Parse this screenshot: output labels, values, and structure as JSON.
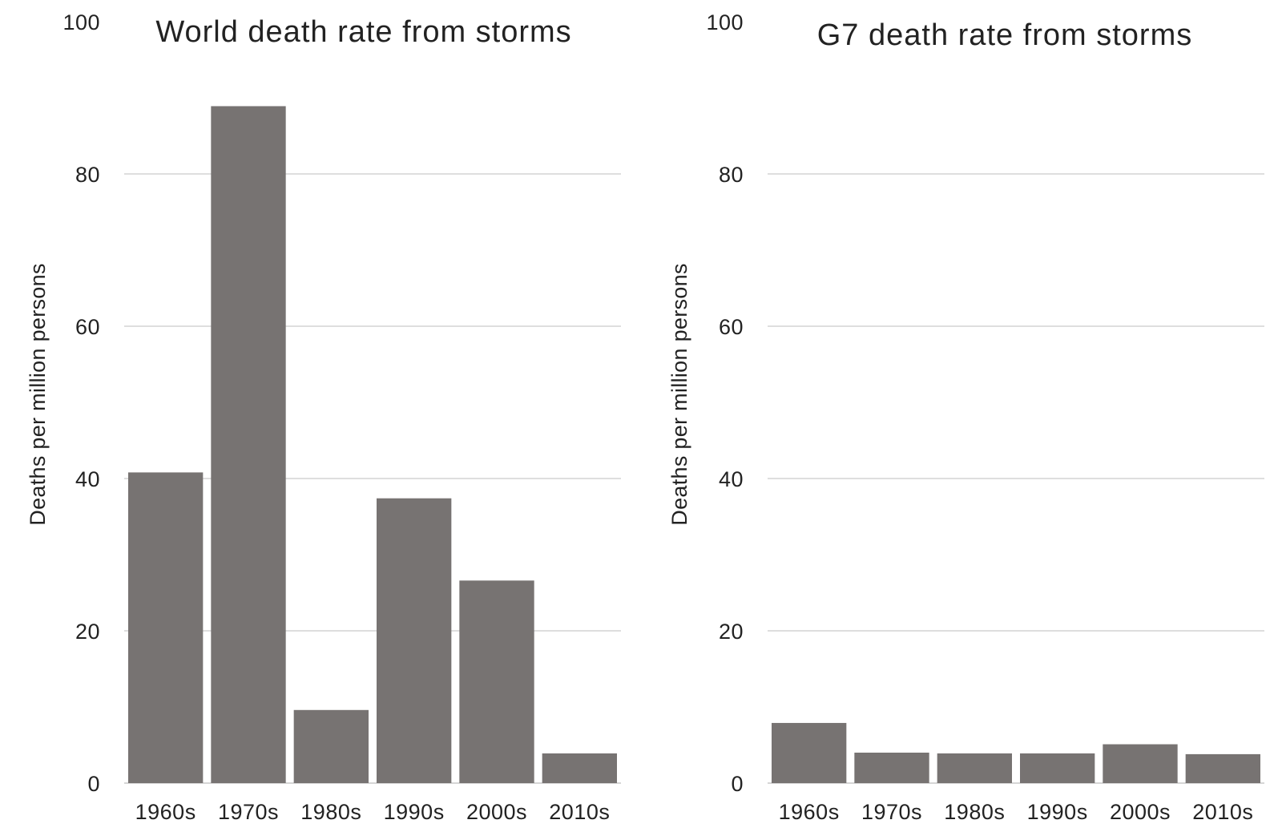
{
  "chart_data": [
    {
      "type": "bar",
      "title": "World death rate from storms",
      "ylabel": "Deaths per million persons",
      "xlabel": "",
      "categories": [
        "1960s",
        "1970s",
        "1980s",
        "1990s",
        "2000s",
        "2010s"
      ],
      "values": [
        40.8,
        88.9,
        9.6,
        37.4,
        26.6,
        3.9
      ],
      "ylim": [
        0,
        100
      ],
      "yticks": [
        0,
        20,
        40,
        60,
        80,
        100
      ],
      "grid": true,
      "bar_color": "#777372"
    },
    {
      "type": "bar",
      "title": "G7 death rate from storms",
      "ylabel": "Deaths per million persons",
      "xlabel": "",
      "categories": [
        "1960s",
        "1970s",
        "1980s",
        "1990s",
        "2000s",
        "2010s"
      ],
      "values": [
        7.9,
        4.0,
        3.9,
        3.9,
        5.1,
        3.8
      ],
      "ylim": [
        0,
        100
      ],
      "yticks": [
        0,
        20,
        40,
        60,
        80,
        100
      ],
      "grid": true,
      "bar_color": "#777372"
    }
  ]
}
